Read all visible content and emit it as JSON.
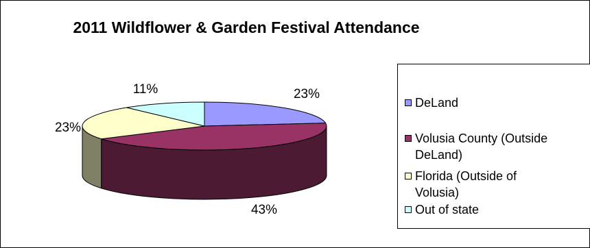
{
  "chart_data": {
    "type": "pie",
    "title": "2011 Wildflower & Garden Festival Attendance",
    "categories": [
      "DeLand",
      "Volusia County (Outside DeLand)",
      "Florida (Outside of Volusia)",
      "Out of state"
    ],
    "values": [
      23,
      43,
      23,
      11
    ],
    "labels": [
      "23%",
      "43%",
      "23%",
      "11%"
    ],
    "colors": [
      "#9999ff",
      "#993366",
      "#ffffcc",
      "#ccffff"
    ],
    "side_colors": [
      "#4c4c80",
      "#4c1a33",
      "#808066",
      "#668080"
    ],
    "legend": {
      "position": "right",
      "entries": [
        {
          "lines": [
            "DeLand"
          ]
        },
        {
          "lines": [
            "Volusia County (Outside",
            "DeLand)"
          ]
        },
        {
          "lines": [
            "Florida (Outside of",
            "Volusia)"
          ]
        },
        {
          "lines": [
            "Out of state"
          ]
        }
      ]
    }
  }
}
